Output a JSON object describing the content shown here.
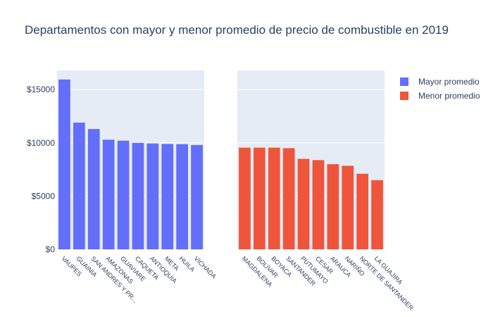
{
  "chart_data": {
    "type": "bar",
    "title": "Departamentos con mayor y menor promedio de precio de combustible en 2019",
    "ylim": [
      0,
      16800
    ],
    "y_ticks": [
      {
        "value": 0,
        "label": "$0"
      },
      {
        "value": 5000,
        "label": "$5000"
      },
      {
        "value": 10000,
        "label": "$10000"
      },
      {
        "value": 15000,
        "label": "$15000"
      }
    ],
    "grid": true,
    "legend_position": "top-right",
    "series": [
      {
        "name": "Mayor promedio",
        "color": "#636efa",
        "categories": [
          "VAUPES",
          "GUAINIA",
          "SAN ANDRES Y PR...",
          "AMAZONAS",
          "GUAVIARE",
          "CAQUETA",
          "ANTIOQUIA",
          "META",
          "HUILA",
          "VICHADA"
        ],
        "values": [
          15950,
          11900,
          11300,
          10300,
          10200,
          10000,
          9950,
          9900,
          9880,
          9800
        ]
      },
      {
        "name": "Menor promedio",
        "color": "#ef553b",
        "categories": [
          "MAGDALENA",
          "BOLIVAR",
          "BOYACA",
          "SANTANDER",
          "PUTUMAYO",
          "CESAR",
          "ARAUCA",
          "NARIÑO",
          "NORTE DE SANTANDER",
          "LA GUAJIRA"
        ],
        "values": [
          9550,
          9550,
          9550,
          9500,
          8500,
          8380,
          8000,
          7850,
          7100,
          6500
        ]
      }
    ]
  }
}
